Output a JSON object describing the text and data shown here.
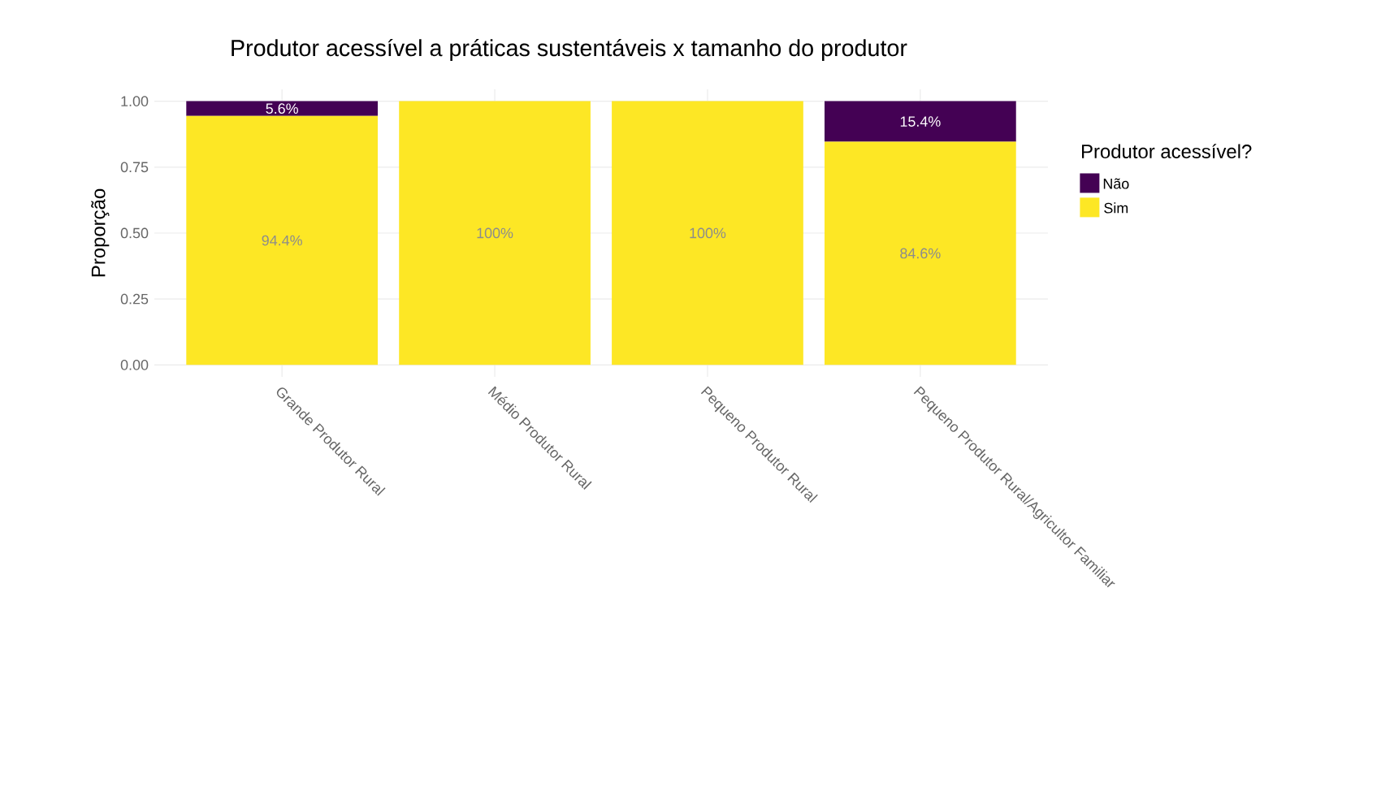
{
  "chart_data": {
    "type": "bar",
    "title": "Produtor acessível a práticas sustentáveis x tamanho do produtor",
    "ylabel": "Proporção",
    "legend_title": "Produtor acessível?",
    "categories": [
      "Grande Produtor Rural",
      "Médio Produtor Rural",
      "Pequeno Produtor Rural",
      "Pequeno Produtor Rural/Agricultor Familiar"
    ],
    "stacked": true,
    "series": [
      {
        "name": "Sim",
        "color": "#fde725",
        "values": [
          0.944,
          1,
          1,
          0.846
        ],
        "value_labels": [
          "94.4%",
          "100%",
          "100%",
          "84.6%"
        ]
      },
      {
        "name": "Não",
        "color": "#440154",
        "values": [
          0.056,
          0,
          0,
          0.154
        ],
        "value_labels": [
          "5.6%",
          null,
          null,
          "15.4%"
        ]
      }
    ],
    "ylim": [
      -0.045,
      1.045
    ],
    "yticks": [
      {
        "value": 0,
        "label": "0.00"
      },
      {
        "value": 0.25,
        "label": "0.25"
      },
      {
        "value": 0.5,
        "label": "0.50"
      },
      {
        "value": 0.75,
        "label": "0.75"
      },
      {
        "value": 1,
        "label": "1.00"
      }
    ],
    "grid": true,
    "legend": "right"
  }
}
